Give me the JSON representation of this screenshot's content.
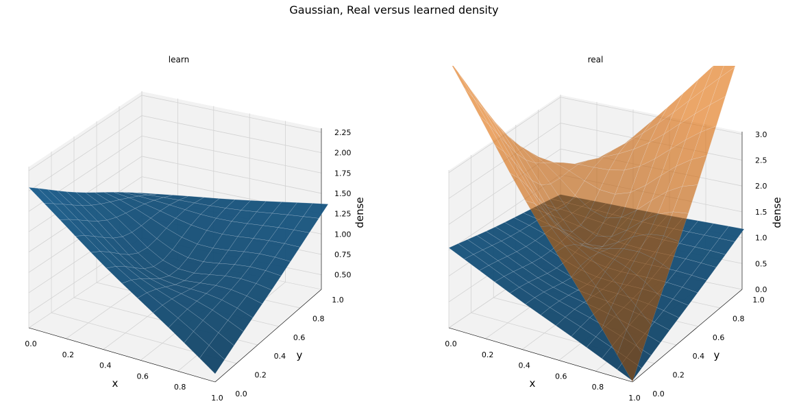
{
  "title": "Gaussian, Real versus learned density",
  "chart_data": [
    {
      "type": "surface3d",
      "title": "learn",
      "xlabel": "x",
      "ylabel": "y",
      "zlabel": "dense",
      "x_ticks": [
        "0.0",
        "0.2",
        "0.4",
        "0.6",
        "0.8",
        "1.0"
      ],
      "y_ticks": [
        "0.0",
        "0.2",
        "0.4",
        "0.6",
        "0.8",
        "1.0"
      ],
      "z_ticks": [
        "0.50",
        "0.75",
        "1.00",
        "1.25",
        "1.50",
        "1.75",
        "2.00",
        "2.25"
      ],
      "zlim": [
        0.32,
        2.3
      ],
      "series": [
        {
          "color": "#1f77b4",
          "corners": {
            "x0y0": 2.05,
            "x1y0": 0.42,
            "x0y1": 1.05,
            "x1y1": 1.58
          },
          "center": 0.6
        }
      ]
    },
    {
      "type": "surface3d",
      "title": "real",
      "xlabel": "x",
      "ylabel": "y",
      "zlabel": "dense",
      "x_ticks": [
        "0.0",
        "0.2",
        "0.4",
        "0.6",
        "0.8",
        "1.0"
      ],
      "y_ticks": [
        "0.0",
        "0.2",
        "0.4",
        "0.6",
        "0.8",
        "1.0"
      ],
      "z_ticks": [
        "0.0",
        "0.5",
        "1.0",
        "1.5",
        "2.0",
        "2.5",
        "3.0"
      ],
      "zlim": [
        0.0,
        3.05
      ],
      "series": [
        {
          "color": "#1f77b4",
          "corners": {
            "x0y0": 1.55,
            "x1y0": 0.02,
            "x0y1": 1.12,
            "x1y1": 1.5
          },
          "center": 0.55
        },
        {
          "color": "#ff7f0e",
          "corners": {
            "x0y0": 5.2,
            "x1y0": 0.0,
            "x0y1": 1.05,
            "x1y1": 5.2
          },
          "center": 0.45
        }
      ]
    }
  ]
}
